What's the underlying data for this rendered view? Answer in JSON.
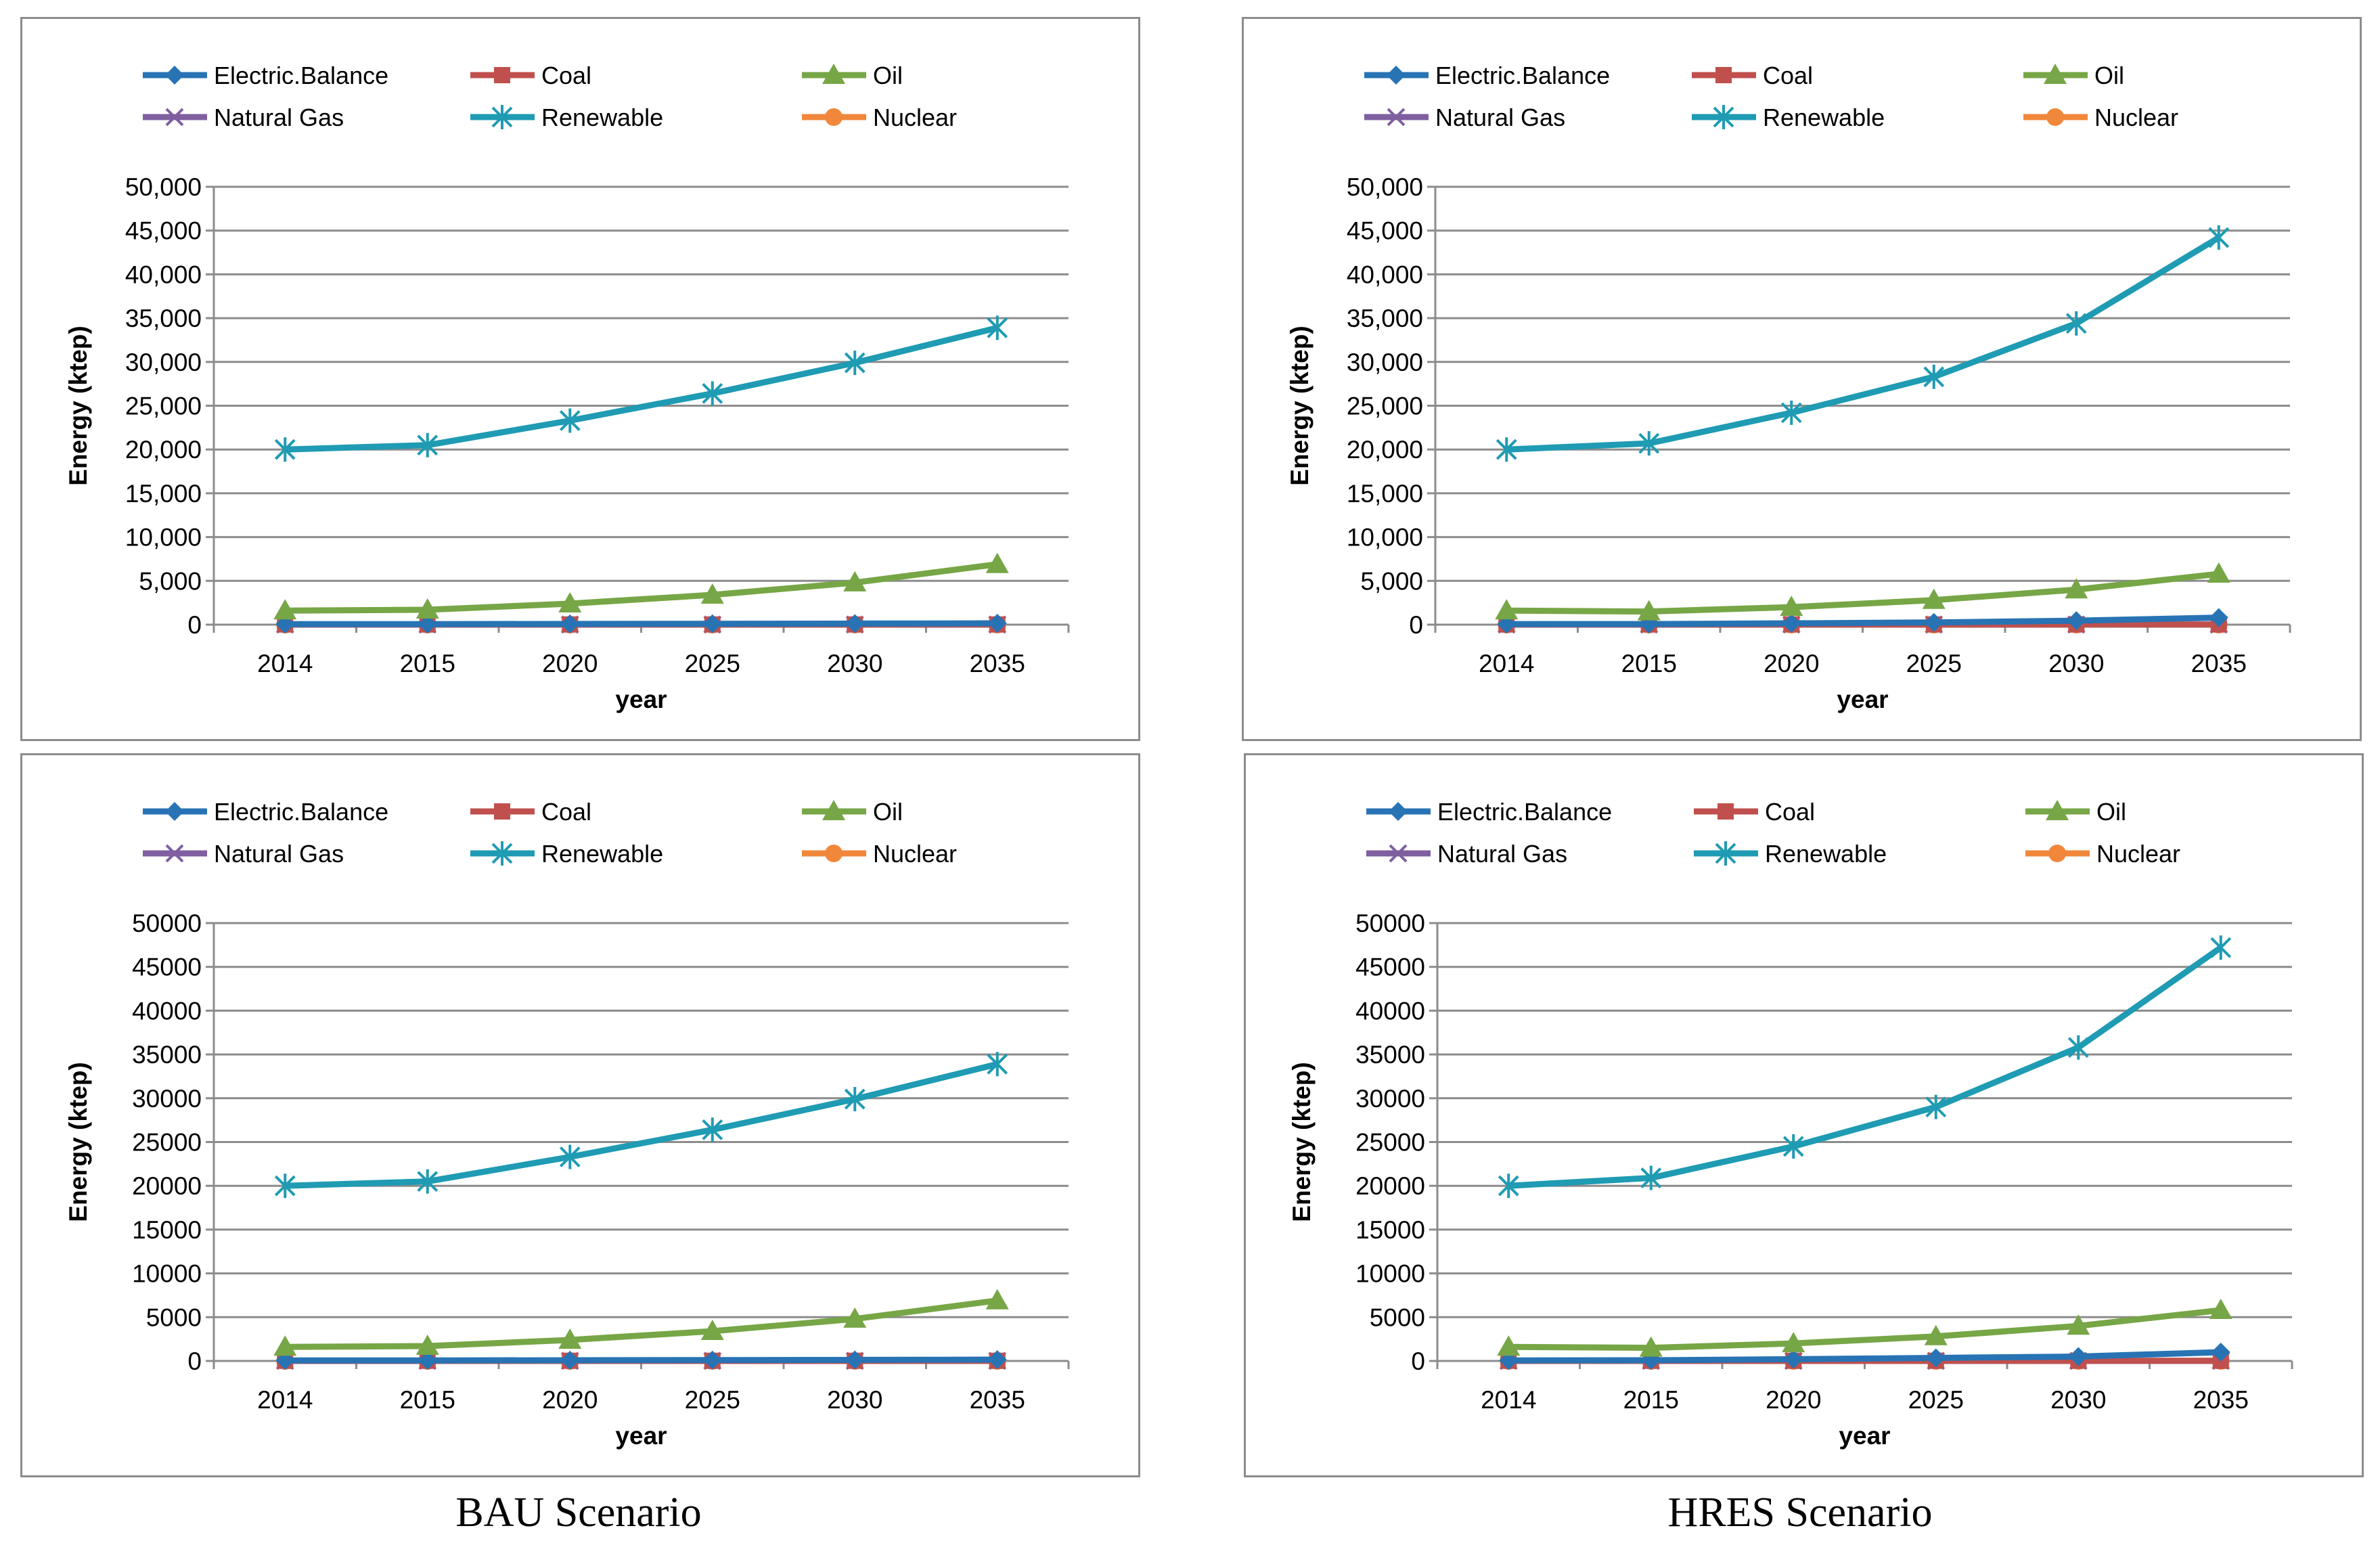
{
  "colors": {
    "Electric.Balance": "#2873b4",
    "Coal": "#c0504d",
    "Oil": "#77a646",
    "Natural Gas": "#7f5fa0",
    "Renewable": "#1f9bb3",
    "Nuclear": "#f0873a",
    "grid": "#8c8c8c",
    "axis": "#8c8c8c"
  },
  "captions": {
    "left": "BAU Scenario",
    "right": "HRES Scenario"
  },
  "chart_data": [
    {
      "id": "bau-top",
      "type": "line",
      "title": "",
      "xlabel": "year",
      "ylabel": "Energy (ktep)",
      "ylim": [
        0,
        50000
      ],
      "ytick_labels": [
        "0",
        "5,000",
        "10,000",
        "15,000",
        "20,000",
        "25,000",
        "30,000",
        "35,000",
        "40,000",
        "45,000",
        "50,000"
      ],
      "grid": true,
      "legend_position": "top",
      "categories": [
        "2014",
        "2015",
        "2020",
        "2025",
        "2030",
        "2035"
      ],
      "series": [
        {
          "name": "Electric.Balance",
          "marker": "diamond",
          "values": [
            60,
            60,
            80,
            100,
            120,
            150
          ]
        },
        {
          "name": "Coal",
          "marker": "square",
          "values": [
            20,
            20,
            20,
            20,
            20,
            20
          ]
        },
        {
          "name": "Oil",
          "marker": "triangle",
          "values": [
            1600,
            1700,
            2400,
            3400,
            4800,
            6900
          ]
        },
        {
          "name": "Natural Gas",
          "marker": "x",
          "values": [
            10,
            10,
            10,
            10,
            10,
            10
          ]
        },
        {
          "name": "Renewable",
          "marker": "star",
          "values": [
            20000,
            20500,
            23300,
            26400,
            29900,
            33900
          ]
        },
        {
          "name": "Nuclear",
          "marker": "circle",
          "values": [
            0,
            0,
            0,
            0,
            0,
            0
          ]
        }
      ]
    },
    {
      "id": "hres-top",
      "type": "line",
      "title": "",
      "xlabel": "year",
      "ylabel": "Energy (ktep)",
      "ylim": [
        0,
        50000
      ],
      "ytick_labels": [
        "0",
        "5,000",
        "10,000",
        "15,000",
        "20,000",
        "25,000",
        "30,000",
        "35,000",
        "40,000",
        "45,000",
        "50,000"
      ],
      "grid": true,
      "legend_position": "top",
      "categories": [
        "2014",
        "2015",
        "2020",
        "2025",
        "2030",
        "2035"
      ],
      "series": [
        {
          "name": "Electric.Balance",
          "marker": "diamond",
          "values": [
            60,
            70,
            150,
            250,
            450,
            800
          ]
        },
        {
          "name": "Coal",
          "marker": "square",
          "values": [
            20,
            20,
            20,
            20,
            20,
            20
          ]
        },
        {
          "name": "Oil",
          "marker": "triangle",
          "values": [
            1600,
            1500,
            2000,
            2800,
            4000,
            5800
          ]
        },
        {
          "name": "Natural Gas",
          "marker": "x",
          "values": [
            10,
            10,
            10,
            10,
            10,
            10
          ]
        },
        {
          "name": "Renewable",
          "marker": "star",
          "values": [
            20000,
            20700,
            24200,
            28300,
            34400,
            44200
          ]
        },
        {
          "name": "Nuclear",
          "marker": "circle",
          "values": [
            0,
            0,
            0,
            0,
            0,
            0
          ]
        }
      ]
    },
    {
      "id": "bau-bottom",
      "type": "line",
      "title": "",
      "xlabel": "year",
      "ylabel": "Energy (ktep)",
      "ylim": [
        0,
        50000
      ],
      "ytick_labels": [
        "0",
        "5000",
        "10000",
        "15000",
        "20000",
        "25000",
        "30000",
        "35000",
        "40000",
        "45000",
        "50000"
      ],
      "grid": true,
      "legend_position": "top",
      "categories": [
        "2014",
        "2015",
        "2020",
        "2025",
        "2030",
        "2035"
      ],
      "series": [
        {
          "name": "Electric.Balance",
          "marker": "diamond",
          "values": [
            60,
            60,
            80,
            100,
            120,
            150
          ]
        },
        {
          "name": "Coal",
          "marker": "square",
          "values": [
            20,
            20,
            20,
            20,
            20,
            20
          ]
        },
        {
          "name": "Oil",
          "marker": "triangle",
          "values": [
            1600,
            1700,
            2400,
            3400,
            4800,
            6900
          ]
        },
        {
          "name": "Natural Gas",
          "marker": "x",
          "values": [
            10,
            10,
            10,
            10,
            10,
            10
          ]
        },
        {
          "name": "Renewable",
          "marker": "star",
          "values": [
            20000,
            20500,
            23300,
            26400,
            29900,
            33900
          ]
        },
        {
          "name": "Nuclear",
          "marker": "circle",
          "values": [
            0,
            0,
            0,
            0,
            0,
            0
          ]
        }
      ]
    },
    {
      "id": "hres-bottom",
      "type": "line",
      "title": "",
      "xlabel": "year",
      "ylabel": "Energy (ktep)",
      "ylim": [
        0,
        50000
      ],
      "ytick_labels": [
        "0",
        "5000",
        "10000",
        "15000",
        "20000",
        "25000",
        "30000",
        "35000",
        "40000",
        "45000",
        "50000"
      ],
      "grid": true,
      "legend_position": "top",
      "categories": [
        "2014",
        "2015",
        "2020",
        "2025",
        "2030",
        "2035"
      ],
      "series": [
        {
          "name": "Electric.Balance",
          "marker": "diamond",
          "values": [
            60,
            80,
            200,
            350,
            500,
            1000
          ]
        },
        {
          "name": "Coal",
          "marker": "square",
          "values": [
            20,
            20,
            20,
            20,
            20,
            20
          ]
        },
        {
          "name": "Oil",
          "marker": "triangle",
          "values": [
            1600,
            1500,
            2000,
            2800,
            4000,
            5800
          ]
        },
        {
          "name": "Natural Gas",
          "marker": "x",
          "values": [
            10,
            10,
            10,
            10,
            10,
            10
          ]
        },
        {
          "name": "Renewable",
          "marker": "star",
          "values": [
            20000,
            20900,
            24500,
            29000,
            35800,
            47200
          ]
        },
        {
          "name": "Nuclear",
          "marker": "circle",
          "values": [
            0,
            0,
            0,
            0,
            0,
            0
          ]
        }
      ]
    }
  ]
}
